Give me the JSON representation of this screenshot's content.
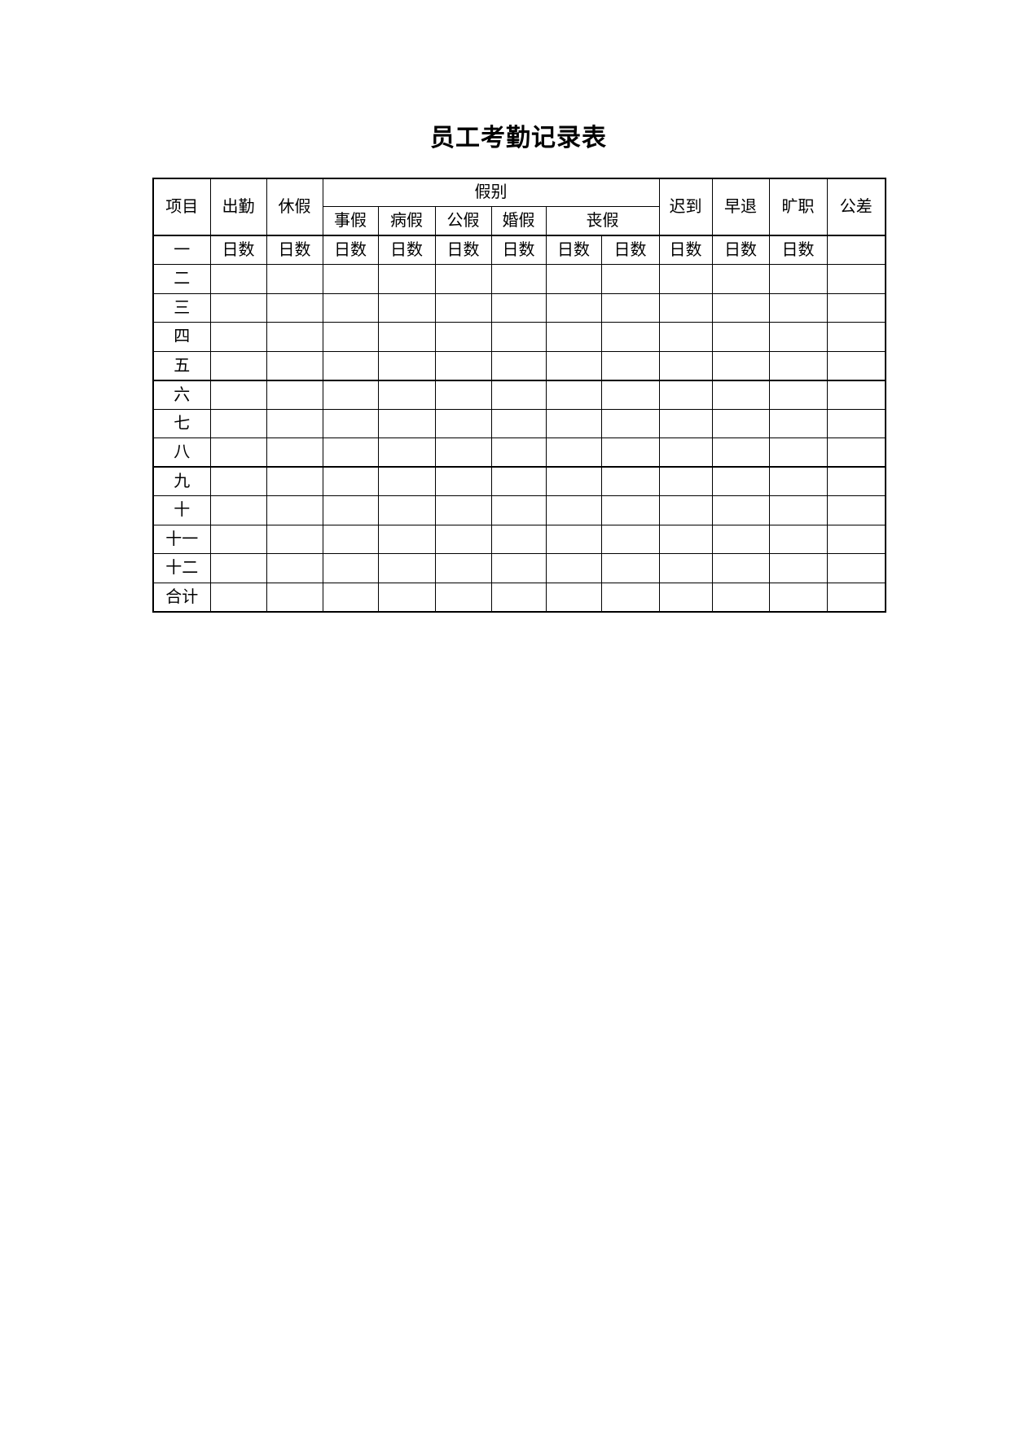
{
  "title": "员工考勤记录表",
  "table": {
    "header": {
      "item": "项目",
      "attendance": "出勤",
      "vacation": "休假",
      "leave_category": "假别",
      "leave_types": [
        "事假",
        "病假",
        "公假",
        "婚假",
        "丧假"
      ],
      "late": "迟到",
      "early_leave": "早退",
      "absenteeism": "旷职",
      "business_trip": "公差"
    },
    "rows": [
      {
        "label": "一",
        "cells": [
          "日数",
          "日数",
          "日数",
          "日数",
          "日数",
          "日数",
          "日数",
          "日数",
          "日数",
          "日数",
          "日数",
          ""
        ]
      },
      {
        "label": "二",
        "cells": [
          "",
          "",
          "",
          "",
          "",
          "",
          "",
          "",
          "",
          "",
          "",
          ""
        ]
      },
      {
        "label": "三",
        "cells": [
          "",
          "",
          "",
          "",
          "",
          "",
          "",
          "",
          "",
          "",
          "",
          ""
        ]
      },
      {
        "label": "四",
        "cells": [
          "",
          "",
          "",
          "",
          "",
          "",
          "",
          "",
          "",
          "",
          "",
          ""
        ]
      },
      {
        "label": "五",
        "cells": [
          "",
          "",
          "",
          "",
          "",
          "",
          "",
          "",
          "",
          "",
          "",
          ""
        ]
      },
      {
        "label": "六",
        "cells": [
          "",
          "",
          "",
          "",
          "",
          "",
          "",
          "",
          "",
          "",
          "",
          ""
        ]
      },
      {
        "label": "七",
        "cells": [
          "",
          "",
          "",
          "",
          "",
          "",
          "",
          "",
          "",
          "",
          "",
          ""
        ]
      },
      {
        "label": "八",
        "cells": [
          "",
          "",
          "",
          "",
          "",
          "",
          "",
          "",
          "",
          "",
          "",
          ""
        ]
      },
      {
        "label": "九",
        "cells": [
          "",
          "",
          "",
          "",
          "",
          "",
          "",
          "",
          "",
          "",
          "",
          ""
        ]
      },
      {
        "label": "十",
        "cells": [
          "",
          "",
          "",
          "",
          "",
          "",
          "",
          "",
          "",
          "",
          "",
          ""
        ]
      },
      {
        "label": "十一",
        "cells": [
          "",
          "",
          "",
          "",
          "",
          "",
          "",
          "",
          "",
          "",
          "",
          ""
        ]
      },
      {
        "label": "十二",
        "cells": [
          "",
          "",
          "",
          "",
          "",
          "",
          "",
          "",
          "",
          "",
          "",
          ""
        ]
      },
      {
        "label": "合计",
        "cells": [
          "",
          "",
          "",
          "",
          "",
          "",
          "",
          "",
          "",
          "",
          "",
          ""
        ]
      }
    ]
  }
}
